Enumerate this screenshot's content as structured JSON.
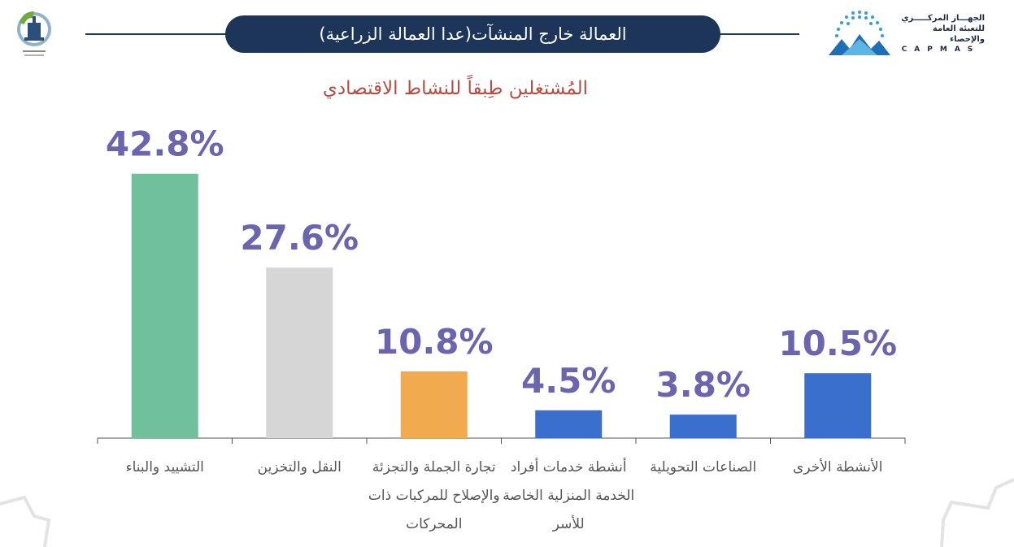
{
  "header": {
    "title": "العمالة خارج المنشآت(عدا العمالة الزراعية)"
  },
  "brand": {
    "name_ar_line1": "الجهـــاز المركـــــزي",
    "name_ar_line2": "للتعبئة العامة والإحصاء",
    "name_en": "CAPMAS"
  },
  "colors": {
    "title_bg": "#1d3558",
    "subtitle": "#b84a40",
    "value_label": "#6b65ae",
    "axis": "#555555"
  },
  "chart_data": {
    "type": "bar",
    "title": "المُشتغلين طِبقاً للنشاط الاقتصادي",
    "xlabel": "",
    "ylabel": "",
    "ylim": [
      0,
      45
    ],
    "grid": false,
    "legend": "none",
    "categories": [
      "التشييد والبناء",
      "النقل والتخزين",
      "تجارة الجملة والتجزئة والإصلاح للمركبات ذات المحركات",
      "أنشطة خدمات أفراد الخدمة المنزلية الخاصة للأسر",
      "الصناعات التحويلية",
      "الأنشطة الأخرى"
    ],
    "values": [
      42.8,
      27.6,
      10.8,
      4.5,
      3.8,
      10.5
    ],
    "value_labels": [
      "42.8%",
      "27.6%",
      "10.8%",
      "4.5%",
      "3.8%",
      "10.5%"
    ],
    "bar_colors": [
      "#71c09c",
      "#d6d6d6",
      "#f2aa4f",
      "#3a6fcd",
      "#3a6fcd",
      "#3a6fcd"
    ]
  }
}
